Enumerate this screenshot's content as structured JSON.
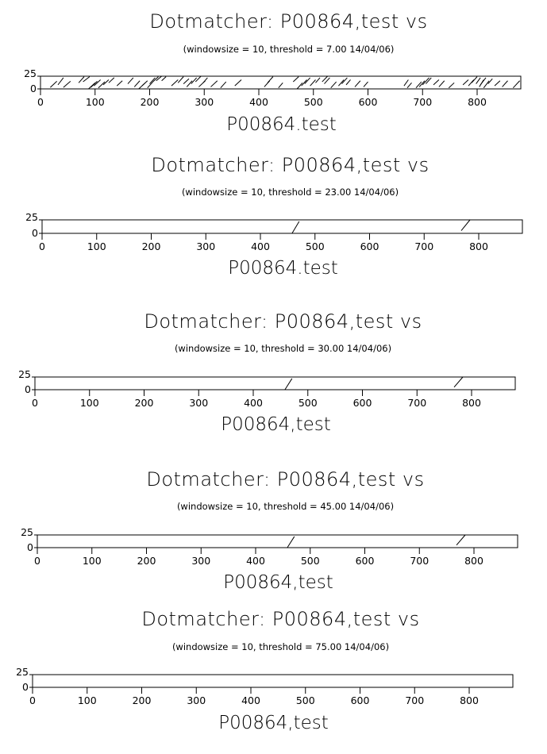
{
  "chart_data": [
    {
      "type": "line",
      "title": "Dotmatcher: P00864,test vs",
      "subtitle": "(windowsize = 10, threshold = 7.00  14/04/06)",
      "xlabel": "P00864.test",
      "xlim": [
        0,
        880
      ],
      "ylim": [
        0,
        25
      ],
      "xticks": [
        "0",
        "100",
        "200",
        "300",
        "400",
        "500",
        "600",
        "700",
        "800"
      ],
      "yticks": [
        "0",
        "25"
      ],
      "segments": [
        [
          18,
          3,
          30,
          15
        ],
        [
          32,
          8,
          42,
          22
        ],
        [
          42,
          3,
          55,
          15
        ],
        [
          70,
          12,
          80,
          24
        ],
        [
          78,
          14,
          90,
          24
        ],
        [
          88,
          0,
          100,
          12
        ],
        [
          92,
          3,
          104,
          15
        ],
        [
          98,
          6,
          110,
          18
        ],
        [
          106,
          2,
          118,
          14
        ],
        [
          115,
          8,
          125,
          18
        ],
        [
          125,
          12,
          135,
          22
        ],
        [
          140,
          6,
          150,
          16
        ],
        [
          160,
          10,
          170,
          22
        ],
        [
          172,
          4,
          182,
          16
        ],
        [
          180,
          0,
          192,
          12
        ],
        [
          186,
          6,
          196,
          16
        ],
        [
          196,
          2,
          206,
          14
        ],
        [
          200,
          10,
          210,
          22
        ],
        [
          206,
          14,
          216,
          24
        ],
        [
          212,
          16,
          222,
          25
        ],
        [
          222,
          16,
          230,
          24
        ],
        [
          240,
          6,
          252,
          18
        ],
        [
          252,
          12,
          262,
          24
        ],
        [
          262,
          10,
          272,
          20
        ],
        [
          268,
          4,
          278,
          16
        ],
        [
          276,
          10,
          286,
          22
        ],
        [
          284,
          14,
          294,
          25
        ],
        [
          290,
          4,
          302,
          16
        ],
        [
          298,
          12,
          306,
          22
        ],
        [
          312,
          4,
          324,
          16
        ],
        [
          330,
          2,
          340,
          14
        ],
        [
          356,
          6,
          368,
          18
        ],
        [
          410,
          4,
          420,
          16
        ],
        [
          416,
          12,
          426,
          24
        ],
        [
          436,
          2,
          444,
          12
        ],
        [
          463,
          14,
          473,
          24
        ],
        [
          470,
          0,
          480,
          12
        ],
        [
          478,
          6,
          488,
          18
        ],
        [
          484,
          10,
          494,
          22
        ],
        [
          494,
          6,
          504,
          18
        ],
        [
          504,
          12,
          512,
          22
        ],
        [
          516,
          14,
          526,
          25
        ],
        [
          520,
          10,
          530,
          22
        ],
        [
          532,
          2,
          542,
          14
        ],
        [
          546,
          6,
          556,
          18
        ],
        [
          552,
          10,
          562,
          22
        ],
        [
          560,
          8,
          568,
          18
        ],
        [
          576,
          4,
          586,
          16
        ],
        [
          592,
          4,
          600,
          14
        ],
        [
          666,
          6,
          674,
          18
        ],
        [
          672,
          2,
          680,
          12
        ],
        [
          688,
          2,
          698,
          14
        ],
        [
          694,
          4,
          704,
          16
        ],
        [
          700,
          8,
          712,
          22
        ],
        [
          706,
          10,
          716,
          22
        ],
        [
          720,
          8,
          730,
          18
        ],
        [
          730,
          4,
          740,
          16
        ],
        [
          748,
          2,
          758,
          12
        ],
        [
          774,
          8,
          784,
          18
        ],
        [
          784,
          6,
          794,
          18
        ],
        [
          790,
          12,
          800,
          24
        ],
        [
          798,
          10,
          806,
          22
        ],
        [
          804,
          4,
          812,
          18
        ],
        [
          806,
          8,
          816,
          22
        ],
        [
          812,
          2,
          822,
          16
        ],
        [
          820,
          10,
          828,
          20
        ],
        [
          832,
          6,
          842,
          16
        ],
        [
          846,
          4,
          856,
          16
        ],
        [
          866,
          2,
          878,
          16
        ]
      ]
    },
    {
      "type": "line",
      "title": "Dotmatcher: P00864,test vs",
      "subtitle": "(windowsize = 10, threshold = 23.00  14/04/06)",
      "xlabel": "P00864.test",
      "xlim": [
        0,
        880
      ],
      "ylim": [
        0,
        25
      ],
      "xticks": [
        "0",
        "100",
        "200",
        "300",
        "400",
        "500",
        "600",
        "700",
        "800"
      ],
      "yticks": [
        "0",
        "25"
      ],
      "segments": [
        [
          458,
          0,
          471,
          22
        ],
        [
          768,
          5,
          784,
          25
        ]
      ]
    },
    {
      "type": "line",
      "title": "Dotmatcher: P00864,test vs",
      "subtitle": "(windowsize = 10, threshold = 30.00  14/04/06)",
      "xlabel": "P00864,test",
      "xlim": [
        0,
        880
      ],
      "ylim": [
        0,
        25
      ],
      "xticks": [
        "0",
        "100",
        "200",
        "300",
        "400",
        "500",
        "600",
        "700",
        "800"
      ],
      "yticks": [
        "0",
        "25"
      ],
      "segments": [
        [
          458,
          0,
          471,
          22
        ],
        [
          768,
          5,
          784,
          25
        ]
      ]
    },
    {
      "type": "line",
      "title": "Dotmatcher: P00864,test vs",
      "subtitle": "(windowsize = 10, threshold = 45.00  14/04/06)",
      "xlabel": "P00864,test",
      "xlim": [
        0,
        880
      ],
      "ylim": [
        0,
        25
      ],
      "xticks": [
        "0",
        "100",
        "200",
        "300",
        "400",
        "500",
        "600",
        "700",
        "800"
      ],
      "yticks": [
        "0",
        "25"
      ],
      "segments": [
        [
          458,
          0,
          471,
          22
        ],
        [
          768,
          5,
          784,
          25
        ]
      ]
    },
    {
      "type": "line",
      "title": "Dotmatcher: P00864,test vs",
      "subtitle": "(windowsize = 10, threshold = 75.00  14/04/06)",
      "xlabel": "P00864,test",
      "xlim": [
        0,
        880
      ],
      "ylim": [
        0,
        25
      ],
      "xticks": [
        "0",
        "100",
        "200",
        "300",
        "400",
        "500",
        "600",
        "700",
        "800"
      ],
      "yticks": [
        "0",
        "25"
      ],
      "segments": []
    }
  ]
}
